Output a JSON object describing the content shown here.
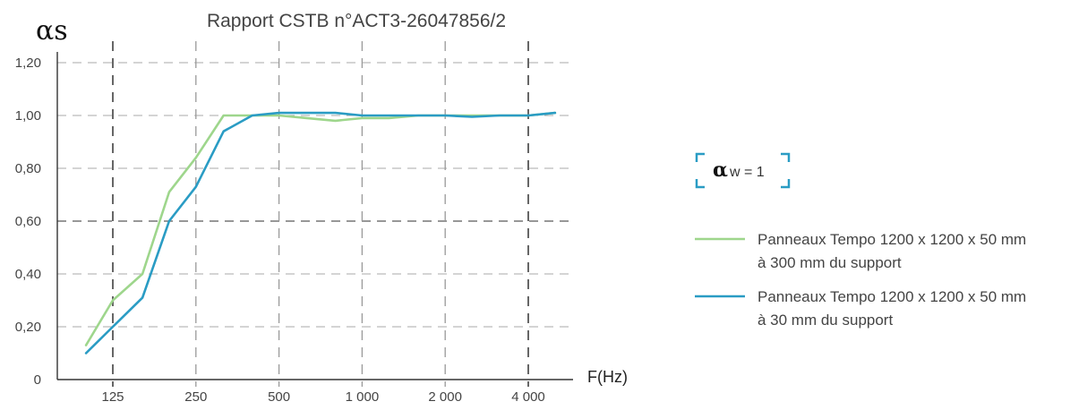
{
  "chart_data": {
    "type": "line",
    "title": "Rapport CSTB n°ACT3-26047856/2",
    "ylabel": "αs",
    "xlabel": "F(Hz)",
    "x_scale": "log",
    "x_ticks": [
      125,
      250,
      500,
      1000,
      2000,
      4000
    ],
    "x_tick_labels": [
      "125",
      "250",
      "500",
      "1 000",
      "2 000",
      "4 000"
    ],
    "y_ticks": [
      0,
      0.2,
      0.4,
      0.6,
      0.8,
      1.0,
      1.2
    ],
    "y_tick_labels": [
      "0",
      "0,20",
      "0,40",
      "0,60",
      "0,80",
      "1,00",
      "1,20"
    ],
    "ylim": [
      0,
      1.2
    ],
    "grid": true,
    "legend_position": "right",
    "series": [
      {
        "name_line1": "Panneaux Tempo 1200 x 1200 x 50 mm",
        "name_line2": "à 300 mm du support",
        "color": "#9ed68c",
        "x": [
          100,
          125,
          160,
          200,
          250,
          315,
          400,
          500,
          630,
          800,
          1000,
          1250,
          1600,
          2000,
          2500,
          3150,
          4000,
          5000
        ],
        "y": [
          0.13,
          0.3,
          0.4,
          0.71,
          0.84,
          1.0,
          1.0,
          1.0,
          0.99,
          0.98,
          0.99,
          0.99,
          1.0,
          1.0,
          1.0,
          1.0,
          1.0,
          1.01
        ]
      },
      {
        "name_line1": "Panneaux Tempo 1200 x 1200 x 50 mm",
        "name_line2": "à 30 mm du support",
        "color": "#2a9cc4",
        "x": [
          100,
          125,
          160,
          200,
          250,
          315,
          400,
          500,
          630,
          800,
          1000,
          1250,
          1600,
          2000,
          2500,
          3150,
          4000,
          5000
        ],
        "y": [
          0.1,
          0.2,
          0.31,
          0.6,
          0.73,
          0.94,
          1.0,
          1.01,
          1.01,
          1.01,
          1.0,
          1.0,
          1.0,
          1.0,
          0.995,
          1.0,
          1.0,
          1.01
        ]
      }
    ],
    "annotation": {
      "symbol": "α",
      "text": "w = 1",
      "bracket_color": "#2a9cc4"
    }
  }
}
